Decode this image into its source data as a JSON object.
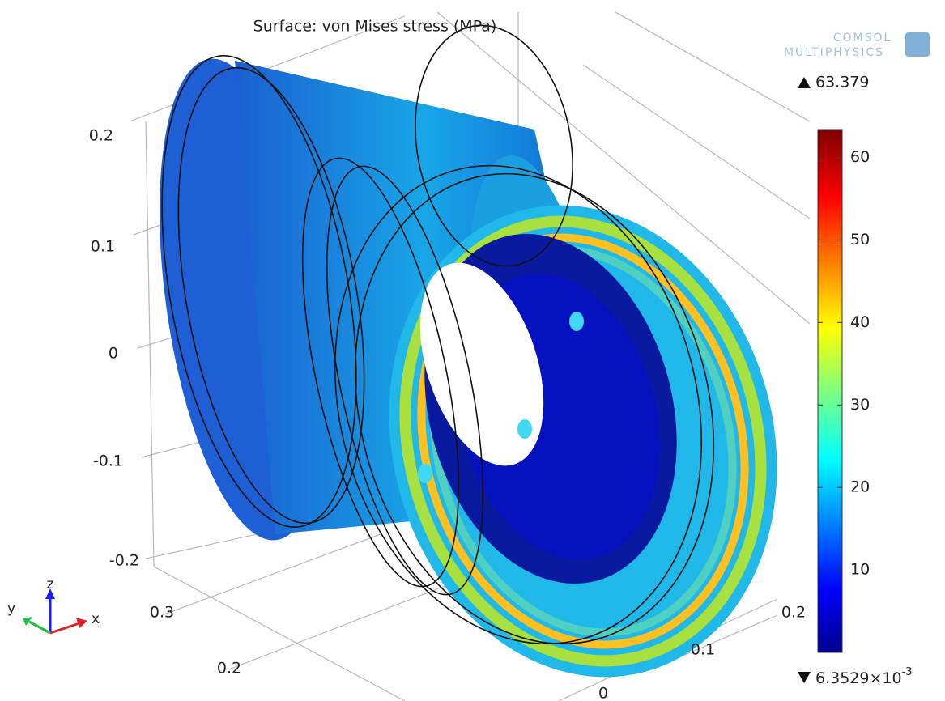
{
  "title": "Surface: von Mises stress (MPa)",
  "logo": [
    "COMSOL",
    "MULTIPHYSICS"
  ],
  "colorbar": {
    "max": 63.379,
    "min": {
      "value": 0.0063529,
      "mantissa": "6.3529×10",
      "exponent": "-3"
    },
    "ticks": [
      10,
      20,
      30,
      40,
      50,
      60
    ]
  },
  "axes": {
    "z_ticks": [
      0.2,
      0.1,
      0,
      -0.1,
      -0.2
    ],
    "y_ticks": [
      0.3,
      0.2
    ],
    "x_ticks": [
      0.2,
      0.1,
      0
    ]
  },
  "triad": {
    "x": "x",
    "y": "y",
    "z": "z"
  }
}
